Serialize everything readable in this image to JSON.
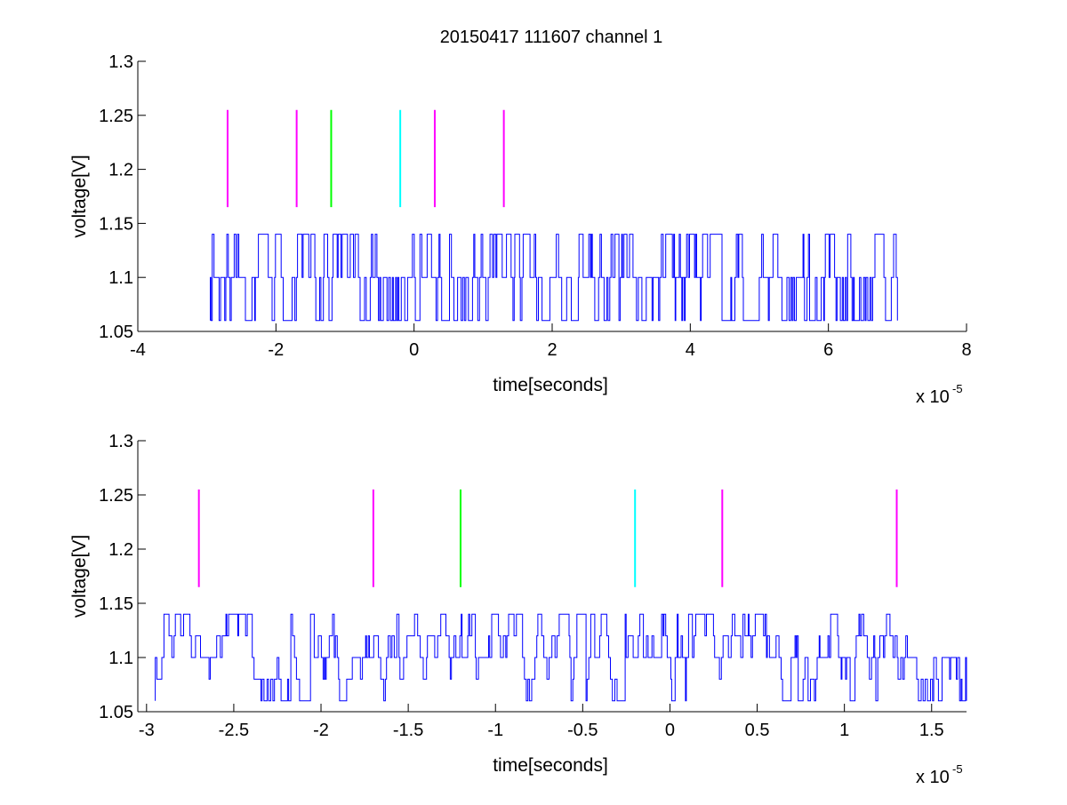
{
  "figure": {
    "title": "20150417 111607 channel 1"
  },
  "chart_data": [
    {
      "type": "line",
      "title": "20150417 111607 channel 1",
      "xlabel": "time[seconds]",
      "ylabel": "voltage[V]",
      "x_multiplier_label": "x 10",
      "x_multiplier_exponent": "-5",
      "xlim": [
        -4,
        8
      ],
      "ylim": [
        1.05,
        1.3
      ],
      "xticks": [
        -4,
        -2,
        0,
        2,
        4,
        6,
        8
      ],
      "xtick_labels": [
        "-4",
        "-2",
        "0",
        "2",
        "4",
        "6",
        "8"
      ],
      "yticks": [
        1.05,
        1.1,
        1.15,
        1.2,
        1.25,
        1.3
      ],
      "ytick_labels": [
        "1.05",
        "1.1",
        "1.15",
        "1.2",
        "1.25",
        "1.3"
      ],
      "grid": false,
      "series": [
        {
          "color": "#0000ff",
          "x_range": [
            -2.95,
            7.0
          ],
          "levels": [
            1.06,
            1.1,
            1.14
          ],
          "description_values": "noisy signal fluctuating among 1.06, 1.1 and 1.14 V"
        }
      ],
      "markers": [
        {
          "x": -2.7,
          "y_from": 1.165,
          "y_to": 1.255,
          "color": "#ff00ff"
        },
        {
          "x": -1.7,
          "y_from": 1.165,
          "y_to": 1.255,
          "color": "#ff00ff"
        },
        {
          "x": -1.2,
          "y_from": 1.165,
          "y_to": 1.255,
          "color": "#00ff00"
        },
        {
          "x": -0.2,
          "y_from": 1.165,
          "y_to": 1.255,
          "color": "#00ffff"
        },
        {
          "x": 0.3,
          "y_from": 1.165,
          "y_to": 1.255,
          "color": "#ff00ff"
        },
        {
          "x": 1.3,
          "y_from": 1.165,
          "y_to": 1.255,
          "color": "#ff00ff"
        }
      ]
    },
    {
      "type": "line",
      "xlabel": "time[seconds]",
      "ylabel": "voltage[V]",
      "x_multiplier_label": "x 10",
      "x_multiplier_exponent": "-5",
      "xlim": [
        -3.05,
        1.7
      ],
      "ylim": [
        1.05,
        1.3
      ],
      "xticks": [
        -3,
        -2.5,
        -2,
        -1.5,
        -1,
        -0.5,
        0,
        0.5,
        1,
        1.5
      ],
      "xtick_labels": [
        "-3",
        "-2.5",
        "-2",
        "-1.5",
        "-1",
        "-0.5",
        "0",
        "0.5",
        "1",
        "1.5"
      ],
      "yticks": [
        1.05,
        1.1,
        1.15,
        1.2,
        1.25,
        1.3
      ],
      "ytick_labels": [
        "1.05",
        "1.1",
        "1.15",
        "1.2",
        "1.25",
        "1.3"
      ],
      "grid": false,
      "series": [
        {
          "color": "#0000ff",
          "x_range": [
            -2.95,
            1.7
          ],
          "levels": [
            1.06,
            1.08,
            1.1,
            1.12,
            1.14
          ]
        }
      ],
      "markers": [
        {
          "x": -2.7,
          "y_from": 1.165,
          "y_to": 1.255,
          "color": "#ff00ff"
        },
        {
          "x": -1.7,
          "y_from": 1.165,
          "y_to": 1.255,
          "color": "#ff00ff"
        },
        {
          "x": -1.2,
          "y_from": 1.165,
          "y_to": 1.255,
          "color": "#00ff00"
        },
        {
          "x": -0.2,
          "y_from": 1.165,
          "y_to": 1.255,
          "color": "#00ffff"
        },
        {
          "x": 0.3,
          "y_from": 1.165,
          "y_to": 1.255,
          "color": "#ff00ff"
        },
        {
          "x": 1.3,
          "y_from": 1.165,
          "y_to": 1.255,
          "color": "#ff00ff"
        }
      ]
    }
  ]
}
